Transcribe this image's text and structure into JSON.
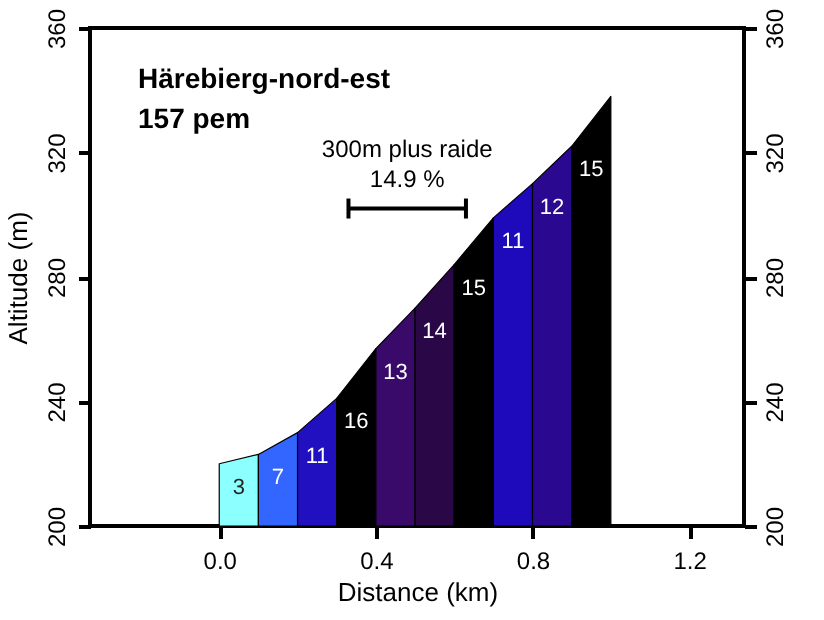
{
  "chart_data": {
    "type": "area",
    "title": "Härebierg-nord-est",
    "subtitle": "157 pem",
    "xlabel": "Distance (km)",
    "ylabel": "Altitude (m)",
    "xlim": [
      -0.33,
      1.34
    ],
    "xticks": [
      {
        "value": 0,
        "label": "0.0"
      },
      {
        "value": 0.4,
        "label": "0.4"
      },
      {
        "value": 0.8,
        "label": "0.8"
      },
      {
        "value": 1.2,
        "label": "1.2"
      }
    ],
    "ylim": [
      200,
      360
    ],
    "yticks": [
      200,
      240,
      280,
      320,
      360
    ],
    "y2lim": [
      200,
      360
    ],
    "y2ticks": [
      200,
      240,
      280,
      320,
      360
    ],
    "grid": false,
    "series": [
      {
        "color": "#8cffff",
        "x": [
          0,
          0.1
        ],
        "values": [
          220,
          223
        ]
      },
      {
        "color": "#3366ff",
        "x": [
          0.1,
          0.2
        ],
        "values": [
          223,
          230
        ]
      },
      {
        "color": "#2010c0",
        "x": [
          0.2,
          0.3
        ],
        "values": [
          230,
          241
        ]
      },
      {
        "color": "#000000",
        "x": [
          0.3,
          0.4
        ],
        "values": [
          241,
          257
        ]
      },
      {
        "color": "#3a0a6a",
        "x": [
          0.4,
          0.5
        ],
        "values": [
          257,
          270
        ]
      },
      {
        "color": "#2a0848",
        "x": [
          0.5,
          0.6
        ],
        "values": [
          270,
          284
        ]
      },
      {
        "color": "#000000",
        "x": [
          0.6,
          0.7
        ],
        "values": [
          284,
          299
        ]
      },
      {
        "color": "#1e0aba",
        "x": [
          0.7,
          0.8
        ],
        "values": [
          299,
          310
        ]
      },
      {
        "color": "#2a0890",
        "x": [
          0.8,
          0.9
        ],
        "values": [
          310,
          322
        ]
      },
      {
        "color": "#000000",
        "x": [
          0.9,
          1.0
        ],
        "values": [
          322,
          338
        ]
      },
      {
        "type": "line",
        "color": "#000000",
        "x": [
          0.33,
          0.63
        ],
        "values": [
          302,
          302
        ]
      }
    ],
    "annotations": [
      "3",
      "7",
      "11",
      "16",
      "13",
      "14",
      "15",
      "11",
      "12",
      "15",
      "300m plus raide",
      "14.9 %"
    ]
  }
}
